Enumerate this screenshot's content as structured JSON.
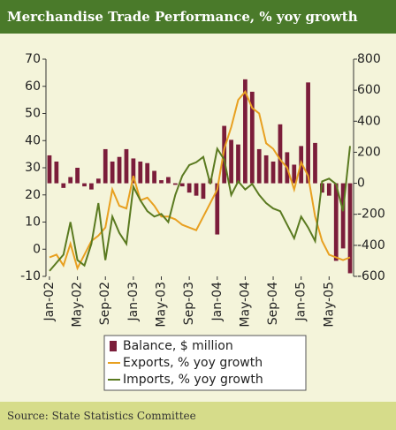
{
  "chart_data": {
    "type": "bar_line",
    "title": "Merchandise Trade Performance, % yoy growth",
    "source": "Source: State Statistics Committee",
    "categories": [
      "Jan-02",
      null,
      null,
      null,
      "May-02",
      null,
      null,
      null,
      "Sep-02",
      null,
      null,
      null,
      "Jan-03",
      null,
      null,
      null,
      "May-03",
      null,
      null,
      null,
      "Sep-03",
      null,
      null,
      null,
      "Jan-04",
      null,
      null,
      null,
      "May-04",
      null,
      null,
      null,
      "Sep-04",
      null,
      null,
      null,
      "Jan-05",
      null,
      null,
      null,
      "May-05",
      null,
      null,
      null
    ],
    "series": [
      {
        "name": "Balance, $ million",
        "kind": "bar",
        "axis": "y2",
        "color": "#7b1d3a",
        "values": [
          180,
          140,
          -30,
          40,
          100,
          -20,
          -40,
          30,
          220,
          140,
          170,
          220,
          160,
          140,
          130,
          80,
          20,
          40,
          -10,
          -20,
          -60,
          -80,
          -100,
          30,
          -330,
          370,
          280,
          250,
          670,
          590,
          220,
          180,
          140,
          380,
          200,
          120,
          240,
          650,
          260,
          -60,
          -80,
          -500,
          -420,
          -580
        ]
      },
      {
        "name": "Exports, % yoy growth",
        "kind": "line",
        "color": "#e8a020",
        "values": [
          -3,
          -2,
          -6,
          2,
          -7,
          -2,
          3,
          5,
          8,
          22,
          16,
          15,
          27,
          18,
          19,
          16,
          12,
          12,
          11,
          9,
          8,
          7,
          12,
          17,
          22,
          37,
          45,
          55,
          58,
          52,
          50,
          39,
          37,
          33,
          30,
          22,
          32,
          27,
          12,
          3,
          -2,
          -3,
          -4,
          -3
        ]
      },
      {
        "name": "Imports, % yoy growth",
        "kind": "line",
        "color": "#5a7a20",
        "values": [
          -8,
          -5,
          -2,
          10,
          -4,
          -6,
          2,
          17,
          -4,
          12,
          6,
          2,
          23,
          18,
          14,
          12,
          13,
          10,
          20,
          27,
          31,
          32,
          34,
          24,
          37,
          33,
          20,
          25,
          22,
          24,
          20,
          17,
          15,
          14,
          9,
          4,
          12,
          8,
          3,
          25,
          26,
          24,
          14,
          38
        ]
      }
    ],
    "ylim": [
      -10,
      70
    ],
    "yticks": [
      -10,
      0,
      10,
      20,
      30,
      40,
      50,
      60,
      70
    ],
    "y2lim": [
      -600,
      800
    ],
    "y2ticks": [
      -600,
      -400,
      -200,
      0,
      200,
      400,
      600,
      800
    ]
  }
}
